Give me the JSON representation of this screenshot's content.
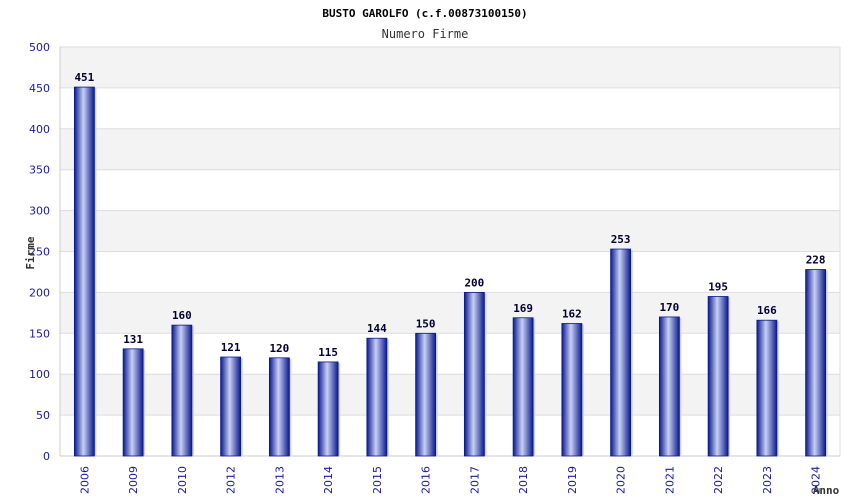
{
  "chart_data": {
    "type": "bar",
    "title": "BUSTO GAROLFO (c.f.00873100150)",
    "subtitle": "Numero Firme",
    "xlabel": "Anno",
    "ylabel": "Firme",
    "categories": [
      "2006",
      "2009",
      "2010",
      "2012",
      "2013",
      "2014",
      "2015",
      "2016",
      "2017",
      "2018",
      "2019",
      "2020",
      "2021",
      "2022",
      "2023",
      "2024"
    ],
    "values": [
      451,
      131,
      160,
      121,
      120,
      115,
      144,
      150,
      200,
      169,
      162,
      253,
      170,
      195,
      166,
      228
    ],
    "ylim": [
      0,
      500
    ],
    "yticks": [
      "0",
      "50",
      "100",
      "150",
      "200",
      "250",
      "300",
      "350",
      "400",
      "450",
      "500"
    ],
    "grid": true,
    "colors": {
      "bar_dark": "#0a1a8c",
      "bar_light": "#c8d0f5",
      "band": "#f3f3f3",
      "tick_text": "#1a1aa0"
    }
  }
}
